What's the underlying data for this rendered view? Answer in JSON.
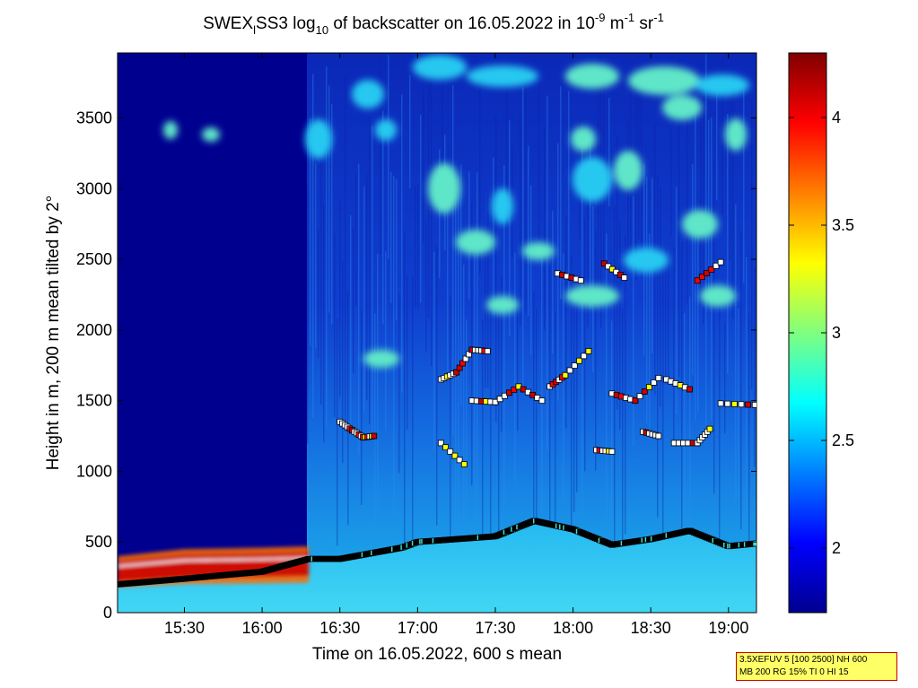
{
  "chart_data": {
    "type": "heatmap",
    "title": {
      "p1": "SWEX",
      "sub1": "l",
      "p2": "SS3 log",
      "sub2": "10",
      "p3": " of backscatter on 16.05.2022 in 10",
      "sup1": "-9",
      "p4": " m",
      "sup2": "-1",
      "p5": " sr",
      "sup3": "-1"
    },
    "xlabel": "Time on 16.05.2022, 600 s mean",
    "ylabel": "Height in m, 200 m mean tilted by 2°",
    "x_ticks": [
      {
        "hour": 15.5,
        "label": "15:30"
      },
      {
        "hour": 16.0,
        "label": "16:00"
      },
      {
        "hour": 16.5,
        "label": "16:30"
      },
      {
        "hour": 17.0,
        "label": "17:00"
      },
      {
        "hour": 17.5,
        "label": "17:30"
      },
      {
        "hour": 18.0,
        "label": "18:00"
      },
      {
        "hour": 18.5,
        "label": "18:30"
      },
      {
        "hour": 19.0,
        "label": "19:00"
      }
    ],
    "y_ticks": [
      {
        "value": 0,
        "label": "0"
      },
      {
        "value": 500,
        "label": "500"
      },
      {
        "value": 1000,
        "label": "1000"
      },
      {
        "value": 1500,
        "label": "1500"
      },
      {
        "value": 2000,
        "label": "2000"
      },
      {
        "value": 2500,
        "label": "2500"
      },
      {
        "value": 3000,
        "label": "3000"
      },
      {
        "value": 3500,
        "label": "3500"
      }
    ],
    "xlim": [
      15.07,
      19.18
    ],
    "ylim": [
      0,
      3960
    ],
    "colorbar": {
      "range": [
        1.7,
        4.3
      ],
      "ticks": [
        {
          "value": 2,
          "label": "2"
        },
        {
          "value": 2.5,
          "label": "2.5"
        },
        {
          "value": 3,
          "label": "3"
        },
        {
          "value": 3.5,
          "label": "3.5"
        },
        {
          "value": 4,
          "label": "4"
        }
      ]
    },
    "mixing_layer_height": [
      [
        15.07,
        200
      ],
      [
        15.5,
        240
      ],
      [
        16.0,
        290
      ],
      [
        16.3,
        380
      ],
      [
        16.5,
        380
      ],
      [
        16.9,
        460
      ],
      [
        17.0,
        500
      ],
      [
        17.5,
        540
      ],
      [
        17.75,
        650
      ],
      [
        18.0,
        590
      ],
      [
        18.25,
        480
      ],
      [
        18.5,
        520
      ],
      [
        18.75,
        580
      ],
      [
        19.0,
        470
      ],
      [
        19.18,
        490
      ]
    ],
    "near_surface_layer_top": [
      [
        15.07,
        400
      ],
      [
        15.5,
        450
      ],
      [
        16.0,
        460
      ],
      [
        16.3,
        470
      ]
    ],
    "cloud_layers": [
      {
        "points": [
          [
            16.5,
            1350
          ],
          [
            16.58,
            1290
          ],
          [
            16.65,
            1240
          ],
          [
            16.72,
            1250
          ]
        ]
      },
      {
        "points": [
          [
            17.15,
            1200
          ],
          [
            17.3,
            1050
          ]
        ]
      },
      {
        "points": [
          [
            17.15,
            1650
          ],
          [
            17.25,
            1700
          ],
          [
            17.35,
            1860
          ],
          [
            17.45,
            1850
          ]
        ]
      },
      {
        "points": [
          [
            17.35,
            1500
          ],
          [
            17.5,
            1490
          ],
          [
            17.65,
            1600
          ],
          [
            17.8,
            1500
          ]
        ]
      },
      {
        "points": [
          [
            17.85,
            1600
          ],
          [
            17.95,
            1680
          ],
          [
            18.1,
            1850
          ]
        ]
      },
      {
        "points": [
          [
            17.9,
            2400
          ],
          [
            18.05,
            2350
          ]
        ]
      },
      {
        "points": [
          [
            18.15,
            1150
          ],
          [
            18.25,
            1140
          ]
        ]
      },
      {
        "points": [
          [
            18.2,
            2470
          ],
          [
            18.33,
            2370
          ]
        ]
      },
      {
        "points": [
          [
            18.25,
            1550
          ],
          [
            18.4,
            1500
          ],
          [
            18.55,
            1660
          ]
        ]
      },
      {
        "points": [
          [
            18.45,
            1280
          ],
          [
            18.55,
            1250
          ]
        ]
      },
      {
        "points": [
          [
            18.6,
            1650
          ],
          [
            18.75,
            1580
          ]
        ]
      },
      {
        "points": [
          [
            18.65,
            1200
          ],
          [
            18.8,
            1200
          ],
          [
            18.88,
            1300
          ]
        ]
      },
      {
        "points": [
          [
            18.8,
            2350
          ],
          [
            18.95,
            2480
          ]
        ]
      },
      {
        "points": [
          [
            18.95,
            1480
          ],
          [
            19.17,
            1470
          ]
        ]
      }
    ]
  },
  "info": {
    "line1": "3.5XEFUV 5 [100 2500] NH 600",
    "line2": "MB 200 RG 15% TI 0 HI 15"
  }
}
